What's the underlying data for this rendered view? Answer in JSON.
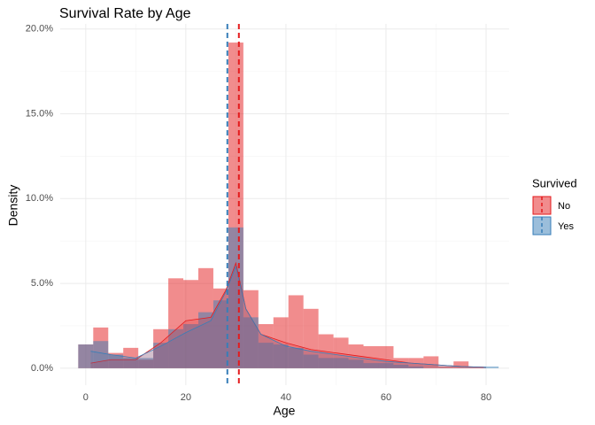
{
  "chart_data": {
    "type": "histogram",
    "title": "Survival Rate by Age",
    "x_label": "Age",
    "y_label": "Density",
    "bins": [
      -1.5,
      1.5,
      4.5,
      7.5,
      10.5,
      13.5,
      16.5,
      19.5,
      22.5,
      25.5,
      28.5,
      31.5,
      34.5,
      37.5,
      40.5,
      43.5,
      46.5,
      49.5,
      52.5,
      55.5,
      58.5,
      61.5,
      64.5,
      67.5,
      70.5,
      73.5,
      76.5,
      79.5,
      82.5
    ],
    "series": [
      {
        "name": "No",
        "color": "#e41a1c",
        "values": [
          1.4,
          2.4,
          0.9,
          1.2,
          0.5,
          2.3,
          5.3,
          5.2,
          5.9,
          4.7,
          19.2,
          4.6,
          2.6,
          3.0,
          4.3,
          3.5,
          2.0,
          1.8,
          1.4,
          1.3,
          1.3,
          0.6,
          0.6,
          0.7,
          0.1,
          0.4,
          0.1,
          0
        ]
      },
      {
        "name": "Yes",
        "color": "#377eb8",
        "values": [
          1.4,
          1.6,
          0.8,
          0.6,
          0.6,
          1.5,
          2.3,
          2.6,
          3.3,
          4.0,
          8.3,
          3.0,
          1.5,
          1.4,
          1.2,
          0.8,
          0.6,
          0.6,
          0.5,
          0.3,
          0.3,
          0.2,
          0.1,
          0,
          0,
          0,
          0,
          0.1
        ]
      }
    ],
    "density": {
      "x": [
        1,
        5,
        10,
        15,
        20,
        25,
        28,
        30,
        32,
        35,
        40,
        45,
        50,
        55,
        60,
        65,
        70,
        75,
        80
      ],
      "series": [
        {
          "color": "#e41a1c",
          "values": [
            0.3,
            0.5,
            0.5,
            1.5,
            2.8,
            3.0,
            4.6,
            6.2,
            3.5,
            2.0,
            1.5,
            1.1,
            0.9,
            0.7,
            0.5,
            0.3,
            0.2,
            0.1,
            0.05
          ]
        },
        {
          "color": "#377eb8",
          "values": [
            1.0,
            0.8,
            0.6,
            1.3,
            2.1,
            2.8,
            4.5,
            6.0,
            3.5,
            2.0,
            1.3,
            1.0,
            0.8,
            0.6,
            0.4,
            0.3,
            0.2,
            0.1,
            0.05
          ]
        }
      ]
    },
    "mean_lines": [
      {
        "color": "#e41a1c",
        "value": 30.6
      },
      {
        "color": "#377eb8",
        "value": 28.3
      }
    ],
    "xlim": [
      -5.1,
      84.6
    ],
    "ylim": [
      -1,
      20.3
    ],
    "xticks": [
      0,
      20,
      40,
      60,
      80
    ],
    "yticks": [
      {
        "value": 0,
        "label": "0.0%"
      },
      {
        "value": 5,
        "label": "5.0%"
      },
      {
        "value": 10,
        "label": "10.0%"
      },
      {
        "value": 15,
        "label": "15.0%"
      },
      {
        "value": 20,
        "label": "20.0%"
      }
    ],
    "grid": true,
    "legend_title": "Survived",
    "legend_position": "right"
  }
}
